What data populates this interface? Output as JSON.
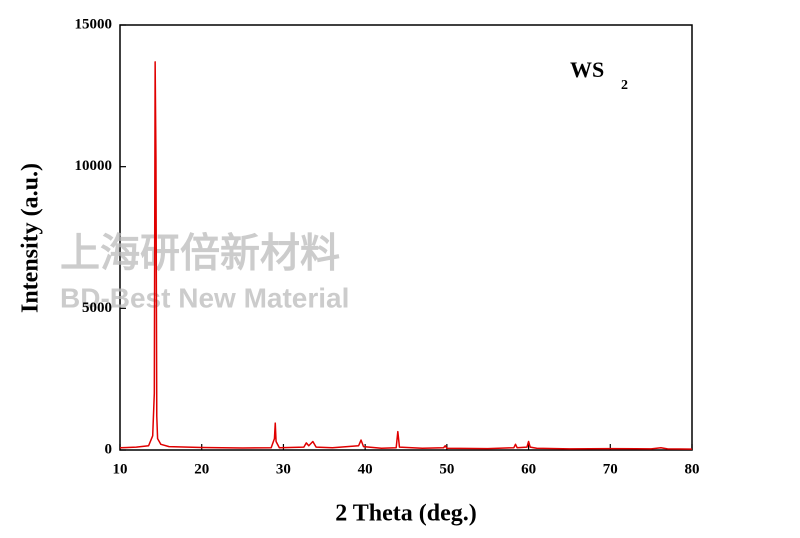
{
  "chart_data": {
    "type": "line",
    "xlabel": "2 Theta (deg.)",
    "ylabel": "Intensity (a.u.)",
    "annotation": {
      "text": "WS",
      "subscript": "2"
    },
    "watermark": [
      "上海研倍新材料",
      "BD-Best New Material"
    ],
    "color": "#e00000",
    "x": [
      10,
      12,
      13.5,
      14.0,
      14.2,
      14.3,
      14.4,
      14.5,
      14.6,
      15,
      16,
      20,
      25,
      28.5,
      28.9,
      29.0,
      29.1,
      29.5,
      32.5,
      32.8,
      33.1,
      33.6,
      34.0,
      36,
      39.2,
      39.5,
      39.8,
      42,
      43.8,
      44.0,
      44.2,
      47,
      49.6,
      49.8,
      50.0,
      55,
      58.2,
      58.4,
      58.6,
      59.8,
      60.0,
      60.2,
      61,
      65,
      70,
      75,
      76.2,
      77,
      80
    ],
    "values": [
      80,
      100,
      150,
      500,
      2000,
      13700,
      10300,
      1200,
      400,
      200,
      120,
      90,
      70,
      80,
      400,
      950,
      300,
      80,
      100,
      250,
      150,
      300,
      100,
      80,
      150,
      350,
      120,
      60,
      80,
      650,
      100,
      60,
      80,
      150,
      60,
      50,
      80,
      200,
      80,
      100,
      300,
      100,
      60,
      40,
      50,
      40,
      80,
      40,
      30
    ],
    "xlim": [
      10,
      80
    ],
    "xticks": [
      10,
      20,
      30,
      40,
      50,
      60,
      70,
      80
    ],
    "ylim": [
      0,
      15000
    ],
    "yticks": [
      0,
      5000,
      10000,
      15000
    ]
  }
}
